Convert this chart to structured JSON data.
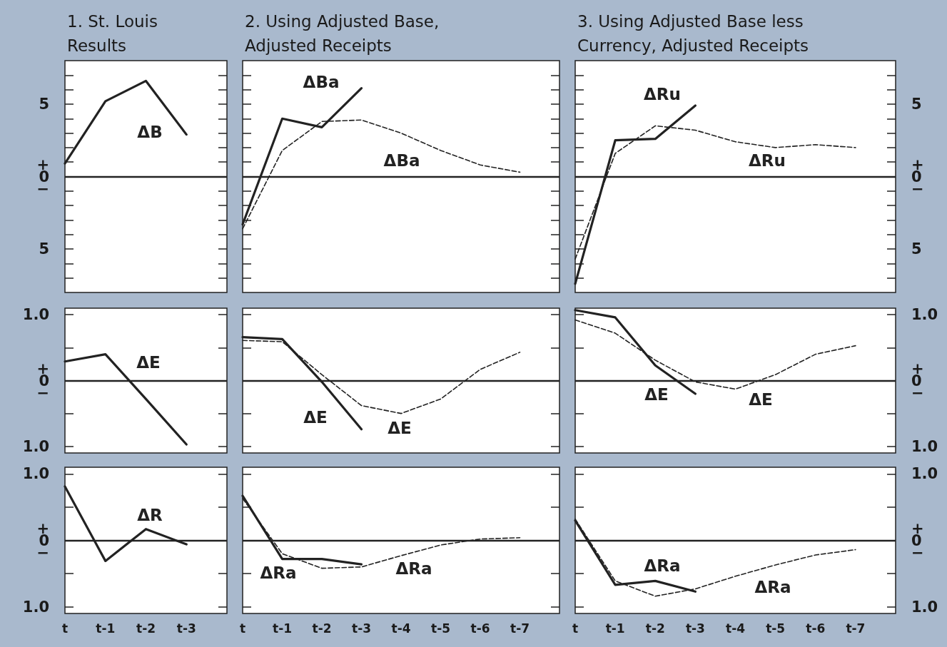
{
  "chart_data": [
    {
      "type": "line",
      "title": "1. St. Louis Results",
      "categories": [
        "t",
        "t-1",
        "t-2",
        "t-3",
        null
      ],
      "ylim": [
        -8,
        8
      ],
      "yticks": [
        {
          "value": -7,
          "label": null
        },
        {
          "value": -6,
          "label": null
        },
        {
          "value": -5,
          "label": "5"
        },
        {
          "value": -4,
          "label": null
        },
        {
          "value": -3,
          "label": null
        },
        {
          "value": -2,
          "label": null
        },
        {
          "value": -1,
          "label": null
        },
        {
          "value": 0,
          "label": "+\n0\n−"
        },
        {
          "value": 1,
          "label": null
        },
        {
          "value": 2,
          "label": null
        },
        {
          "value": 3,
          "label": null
        },
        {
          "value": 4,
          "label": null
        },
        {
          "value": 5,
          "label": "5"
        },
        {
          "value": 6,
          "label": null
        },
        {
          "value": 7,
          "label": null
        }
      ],
      "tick_labels": "y",
      "ref_lines": [
        {
          "axis": "y",
          "value": 0
        }
      ],
      "series": [
        {
          "name": "ΔB",
          "color": "#222222",
          "line_style": "solid",
          "values": [
            0.9,
            5.2,
            6.6,
            2.9,
            null
          ]
        }
      ]
    },
    {
      "type": "line",
      "title": "2. Using Adjusted Base, Adjusted Receipts",
      "categories": [
        "t",
        "t-1",
        "t-2",
        "t-3",
        "t-4",
        "t-5",
        "t-6",
        "t-7",
        null
      ],
      "ylim": [
        -8,
        8
      ],
      "yticks": [
        {
          "value": -7,
          "label": null
        },
        {
          "value": -6,
          "label": null
        },
        {
          "value": -5,
          "label": null
        },
        {
          "value": -4,
          "label": null
        },
        {
          "value": -3,
          "label": null
        },
        {
          "value": -2,
          "label": null
        },
        {
          "value": -1,
          "label": null
        },
        {
          "value": 0,
          "label": null
        },
        {
          "value": 1,
          "label": null
        },
        {
          "value": 2,
          "label": null
        },
        {
          "value": 3,
          "label": null
        },
        {
          "value": 4,
          "label": null
        },
        {
          "value": 5,
          "label": null
        },
        {
          "value": 6,
          "label": null
        },
        {
          "value": 7,
          "label": null
        }
      ],
      "tick_labels": false,
      "ref_lines": [
        {
          "axis": "y",
          "value": 0
        }
      ],
      "series": [
        {
          "name": "ΔBa",
          "color": "#222222",
          "line_style": "solid",
          "values": [
            -3.3,
            4.0,
            3.4,
            6.1,
            null,
            null,
            null,
            null,
            null
          ]
        },
        {
          "name": "ΔBa",
          "color": "#222222",
          "line_style": "dashed",
          "values": [
            -3.6,
            1.8,
            3.8,
            3.9,
            3.0,
            1.8,
            0.8,
            0.3,
            null
          ]
        }
      ]
    },
    {
      "type": "line",
      "title": "3. Using Adjusted Base less Currency, Adjusted Receipts",
      "categories": [
        "t",
        "t-1",
        "t-2",
        "t-3",
        "t-4",
        "t-5",
        "t-6",
        "t-7",
        null
      ],
      "ylim": [
        -8,
        8
      ],
      "yticks": [
        {
          "value": -7,
          "label": null
        },
        {
          "value": -6,
          "label": null
        },
        {
          "value": -5,
          "label": "5"
        },
        {
          "value": -4,
          "label": null
        },
        {
          "value": -3,
          "label": null
        },
        {
          "value": -2,
          "label": null
        },
        {
          "value": -1,
          "label": null
        },
        {
          "value": 0,
          "label": "+\n0\n−"
        },
        {
          "value": 1,
          "label": null
        },
        {
          "value": 2,
          "label": null
        },
        {
          "value": 3,
          "label": null
        },
        {
          "value": 4,
          "label": null
        },
        {
          "value": 5,
          "label": "5"
        },
        {
          "value": 6,
          "label": null
        },
        {
          "value": 7,
          "label": null
        }
      ],
      "tick_labels": "y",
      "ref_lines": [
        {
          "axis": "y",
          "value": 0
        }
      ],
      "series": [
        {
          "name": "ΔRu",
          "color": "#222222",
          "line_style": "solid",
          "values": [
            -7.4,
            2.5,
            2.6,
            4.9,
            null,
            null,
            null,
            null,
            null
          ]
        },
        {
          "name": "ΔRu",
          "color": "#222222",
          "line_style": "dashed",
          "values": [
            -5.7,
            1.6,
            3.5,
            3.2,
            2.4,
            2.0,
            2.2,
            2.0,
            null
          ]
        }
      ]
    },
    {
      "type": "line",
      "categories": [
        "t",
        "t-1",
        "t-2",
        "t-3",
        null
      ],
      "ylim": [
        -1.1,
        1.1
      ],
      "yticks": [
        {
          "value": -1,
          "label": "1.0"
        },
        {
          "value": -0.5,
          "label": null
        },
        {
          "value": 0,
          "label": "+\n0\n−"
        },
        {
          "value": 0.5,
          "label": null
        },
        {
          "value": 1,
          "label": "1.0"
        }
      ],
      "tick_labels": "y",
      "ref_lines": [
        {
          "axis": "y",
          "value": 0
        }
      ],
      "series": [
        {
          "name": "ΔE",
          "color": "#222222",
          "line_style": "solid",
          "values": [
            0.29,
            0.4,
            -0.28,
            -0.97,
            null
          ]
        }
      ]
    },
    {
      "type": "line",
      "categories": [
        "t",
        "t-1",
        "t-2",
        "t-3",
        "t-4",
        "t-5",
        "t-6",
        "t-7",
        null
      ],
      "ylim": [
        -1.1,
        1.1
      ],
      "yticks": [
        {
          "value": -1,
          "label": null
        },
        {
          "value": -0.5,
          "label": null
        },
        {
          "value": 0,
          "label": null
        },
        {
          "value": 0.5,
          "label": null
        },
        {
          "value": 1,
          "label": null
        }
      ],
      "tick_labels": false,
      "ref_lines": [
        {
          "axis": "y",
          "value": 0
        }
      ],
      "series": [
        {
          "name": "ΔE",
          "color": "#222222",
          "line_style": "solid",
          "values": [
            0.66,
            0.63,
            -0.02,
            -0.74,
            null,
            null,
            null,
            null,
            null
          ]
        },
        {
          "name": "ΔE",
          "color": "#222222",
          "line_style": "dashed",
          "values": [
            0.61,
            0.59,
            0.09,
            -0.38,
            -0.5,
            -0.28,
            0.17,
            0.43,
            null
          ]
        }
      ]
    },
    {
      "type": "line",
      "categories": [
        "t",
        "t-1",
        "t-2",
        "t-3",
        "t-4",
        "t-5",
        "t-6",
        "t-7",
        null
      ],
      "ylim": [
        -1.1,
        1.1
      ],
      "yticks": [
        {
          "value": -1,
          "label": "1.0"
        },
        {
          "value": -0.5,
          "label": null
        },
        {
          "value": 0,
          "label": "+\n0\n−"
        },
        {
          "value": 0.5,
          "label": null
        },
        {
          "value": 1,
          "label": "1.0"
        }
      ],
      "tick_labels": "y",
      "ref_lines": [
        {
          "axis": "y",
          "value": 0
        }
      ],
      "series": [
        {
          "name": "ΔE",
          "color": "#222222",
          "line_style": "solid",
          "values": [
            1.07,
            0.96,
            0.23,
            -0.2,
            null,
            null,
            null,
            null,
            null
          ]
        },
        {
          "name": "ΔE",
          "color": "#222222",
          "line_style": "dashed",
          "values": [
            0.92,
            0.72,
            0.31,
            -0.02,
            -0.13,
            0.09,
            0.4,
            0.53,
            null
          ]
        }
      ]
    },
    {
      "type": "line",
      "categories": [
        "t",
        "t-1",
        "t-2",
        "t-3",
        null
      ],
      "ylim": [
        -1.1,
        1.1
      ],
      "yticks": [
        {
          "value": -1,
          "label": "1.0"
        },
        {
          "value": -0.5,
          "label": null
        },
        {
          "value": 0,
          "label": "+\n0\n−"
        },
        {
          "value": 0.5,
          "label": null
        },
        {
          "value": 1,
          "label": "1.0"
        }
      ],
      "ref_lines": [
        {
          "axis": "y",
          "value": 0
        }
      ],
      "series": [
        {
          "name": "ΔR",
          "color": "#222222",
          "line_style": "solid",
          "values": [
            0.81,
            -0.31,
            0.17,
            -0.06,
            null
          ]
        }
      ]
    },
    {
      "type": "line",
      "categories": [
        "t",
        "t-1",
        "t-2",
        "t-3",
        "t-4",
        "t-5",
        "t-6",
        "t-7",
        null
      ],
      "ylim": [
        -1.1,
        1.1
      ],
      "yticks": [
        {
          "value": -1,
          "label": null
        },
        {
          "value": -0.5,
          "label": null
        },
        {
          "value": 0,
          "label": null
        },
        {
          "value": 0.5,
          "label": null
        },
        {
          "value": 1,
          "label": null
        }
      ],
      "tick_labels": "x",
      "ref_lines": [
        {
          "axis": "y",
          "value": 0
        }
      ],
      "series": [
        {
          "name": "ΔRa",
          "color": "#222222",
          "line_style": "solid",
          "values": [
            0.67,
            -0.28,
            -0.28,
            -0.36,
            null,
            null,
            null,
            null,
            null
          ]
        },
        {
          "name": "ΔRa",
          "color": "#222222",
          "line_style": "dashed",
          "values": [
            0.63,
            -0.2,
            -0.42,
            -0.4,
            -0.23,
            -0.07,
            0.02,
            0.04,
            null
          ]
        }
      ]
    },
    {
      "type": "line",
      "categories": [
        "t",
        "t-1",
        "t-2",
        "t-3",
        "t-4",
        "t-5",
        "t-6",
        "t-7",
        null
      ],
      "ylim": [
        -1.1,
        1.1
      ],
      "yticks": [
        {
          "value": -1,
          "label": "1.0"
        },
        {
          "value": -0.5,
          "label": null
        },
        {
          "value": 0,
          "label": "+\n0\n−"
        },
        {
          "value": 0.5,
          "label": null
        },
        {
          "value": 1,
          "label": "1.0"
        }
      ],
      "ref_lines": [
        {
          "axis": "y",
          "value": 0
        }
      ],
      "series": [
        {
          "name": "ΔRa",
          "color": "#222222",
          "line_style": "solid",
          "values": [
            0.3,
            -0.67,
            -0.61,
            -0.77,
            null,
            null,
            null,
            null,
            null
          ]
        },
        {
          "name": "ΔRa",
          "color": "#222222",
          "line_style": "dashed",
          "values": [
            0.32,
            -0.61,
            -0.84,
            -0.73,
            -0.54,
            -0.37,
            -0.22,
            -0.14,
            null
          ]
        }
      ]
    }
  ]
}
